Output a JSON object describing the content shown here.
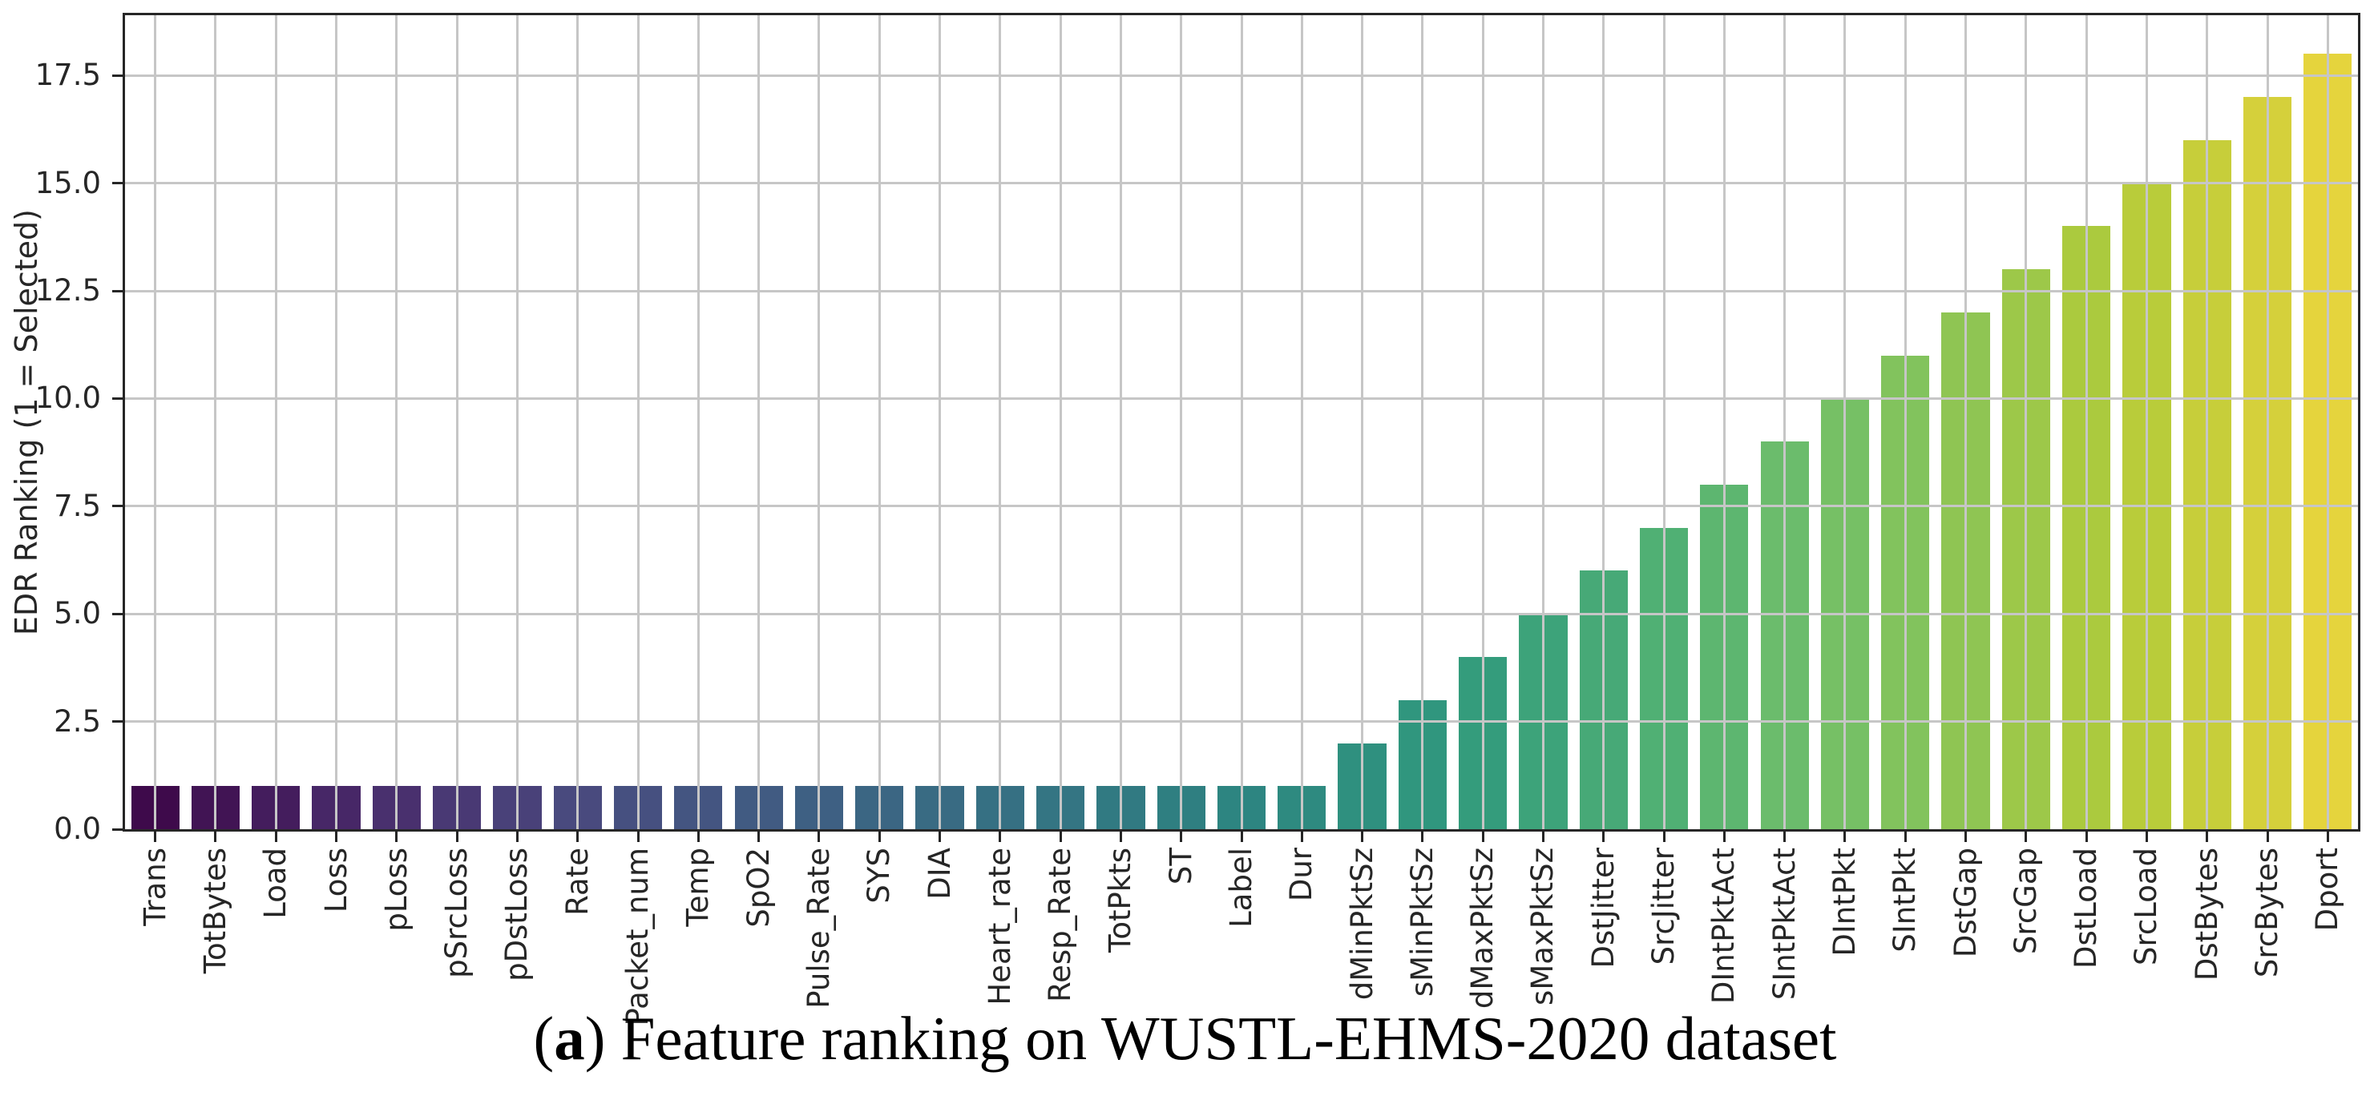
{
  "figure": {
    "caption": {
      "open": "(",
      "index": "a",
      "rest": ") Feature ranking on WUSTL-EHMS-2020 dataset"
    }
  },
  "chart_data": {
    "type": "bar",
    "title": "",
    "xlabel": "",
    "ylabel": "EDR Ranking (1 = Selected)",
    "categories": [
      "Trans",
      "TotBytes",
      "Load",
      "Loss",
      "pLoss",
      "pSrcLoss",
      "pDstLoss",
      "Rate",
      "Packet_num",
      "Temp",
      "SpO2",
      "Pulse_Rate",
      "SYS",
      "DIA",
      "Heart_rate",
      "Resp_Rate",
      "TotPkts",
      "ST",
      "Label",
      "Dur",
      "dMinPktSz",
      "sMinPktSz",
      "dMaxPktSz",
      "sMaxPktSz",
      "DstJitter",
      "SrcJitter",
      "DIntPktAct",
      "SIntPktAct",
      "DIntPkt",
      "SIntPkt",
      "DstGap",
      "SrcGap",
      "DstLoad",
      "SrcLoad",
      "DstBytes",
      "SrcBytes",
      "Dport"
    ],
    "values": [
      1,
      1,
      1,
      1,
      1,
      1,
      1,
      1,
      1,
      1,
      1,
      1,
      1,
      1,
      1,
      1,
      1,
      1,
      1,
      1,
      2,
      3,
      4,
      5,
      6,
      7,
      8,
      9,
      10,
      11,
      12,
      13,
      14,
      15,
      16,
      17,
      18
    ],
    "ylim": [
      0,
      18.9
    ],
    "yticks": [
      "0.0",
      "2.5",
      "5.0",
      "7.5",
      "10.0",
      "12.5",
      "15.0",
      "17.5"
    ],
    "grid": true,
    "grid_over_bars": true,
    "bar_width_fraction": 0.8,
    "grid_color": "#c6c6c6",
    "spine_color": "#262626",
    "text_color": "#262626",
    "background_color": "#ffffff",
    "colormap": {
      "name": "viridis",
      "desaturation": 0.78,
      "stops": [
        "#440154",
        "#482475",
        "#414487",
        "#355f8d",
        "#2a788e",
        "#21918c",
        "#22a884",
        "#44bf70",
        "#7ad151",
        "#bddf26",
        "#fde725"
      ]
    }
  }
}
